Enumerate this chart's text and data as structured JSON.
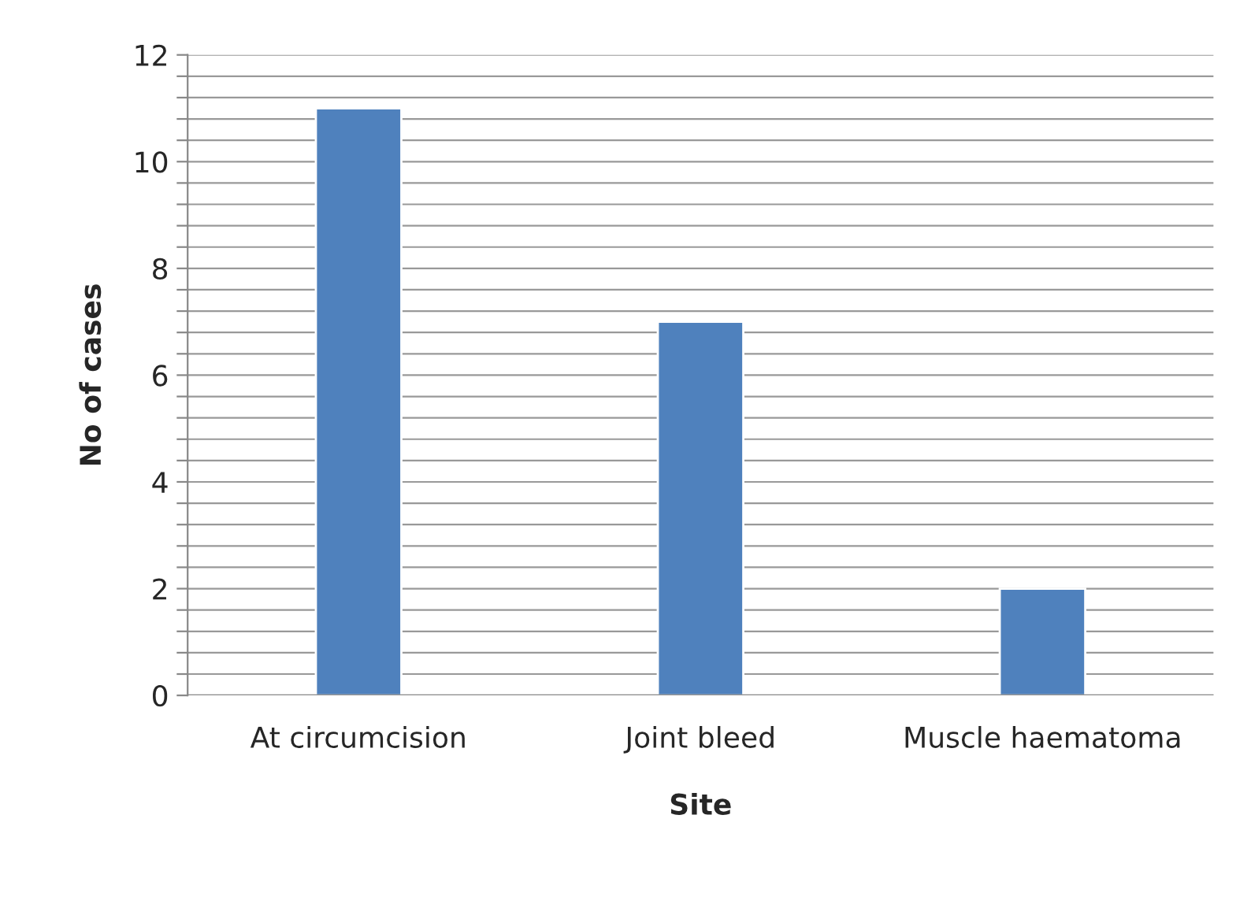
{
  "chart_data": {
    "type": "bar",
    "xlabel": "Site",
    "ylabel": "No of cases",
    "categories": [
      "At circumcision",
      "Joint bleed",
      "Muscle haematoma"
    ],
    "values": [
      11,
      7,
      2
    ],
    "color": "#4f81bd",
    "ylim": [
      0,
      12
    ],
    "yticks": [
      0,
      {
        "value": 0.4,
        "label": null
      },
      {
        "value": 0.8,
        "label": null
      },
      {
        "value": 1.2,
        "label": null
      },
      {
        "value": 1.6,
        "label": null
      },
      2,
      {
        "value": 2.4,
        "label": null
      },
      {
        "value": 2.8,
        "label": null
      },
      {
        "value": 3.2,
        "label": null
      },
      {
        "value": 3.6,
        "label": null
      },
      4,
      {
        "value": 4.4,
        "label": null
      },
      {
        "value": 4.8,
        "label": null
      },
      {
        "value": 5.2,
        "label": null
      },
      {
        "value": 5.6,
        "label": null
      },
      6,
      {
        "value": 6.4,
        "label": null
      },
      {
        "value": 6.8,
        "label": null
      },
      {
        "value": 7.2,
        "label": null
      },
      {
        "value": 7.6,
        "label": null
      },
      8,
      {
        "value": 8.4,
        "label": null
      },
      {
        "value": 8.8,
        "label": null
      },
      {
        "value": 9.2,
        "label": null
      },
      {
        "value": 9.6,
        "label": null
      },
      10,
      {
        "value": 10.4,
        "label": null
      },
      {
        "value": 10.8,
        "label": null
      },
      {
        "value": 11.2,
        "label": null
      },
      {
        "value": 11.6,
        "label": null
      },
      12
    ],
    "grid": "y"
  }
}
